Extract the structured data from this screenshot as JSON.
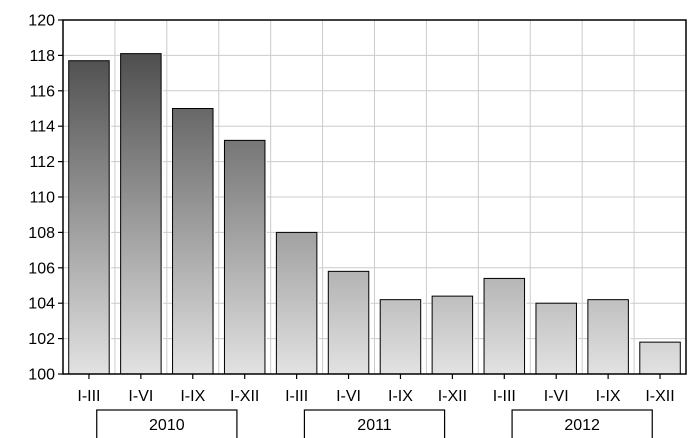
{
  "chart_data": {
    "type": "bar",
    "categories": [
      "I-III",
      "I-VI",
      "I-IX",
      "I-XII",
      "I-III",
      "I-VI",
      "I-IX",
      "I-XII",
      "I-III",
      "I-VI",
      "I-IX",
      "I-XII"
    ],
    "values": [
      117.7,
      118.1,
      115.0,
      113.2,
      108.0,
      105.8,
      104.2,
      104.4,
      105.4,
      104.0,
      104.2,
      101.8
    ],
    "groups": [
      {
        "label": "2010",
        "categories": [
          0,
          1,
          2,
          3
        ]
      },
      {
        "label": "2011",
        "categories": [
          4,
          5,
          6,
          7
        ]
      },
      {
        "label": "2012",
        "categories": [
          8,
          9,
          10,
          11
        ]
      }
    ],
    "ylim": [
      100,
      120
    ],
    "yticks": [
      100,
      102,
      104,
      106,
      108,
      110,
      112,
      114,
      116,
      118,
      120
    ],
    "grid": true,
    "bar_gradient": [
      "#3f3f3f",
      "#e2e2e2"
    ],
    "title": "",
    "xlabel": "",
    "ylabel": ""
  }
}
